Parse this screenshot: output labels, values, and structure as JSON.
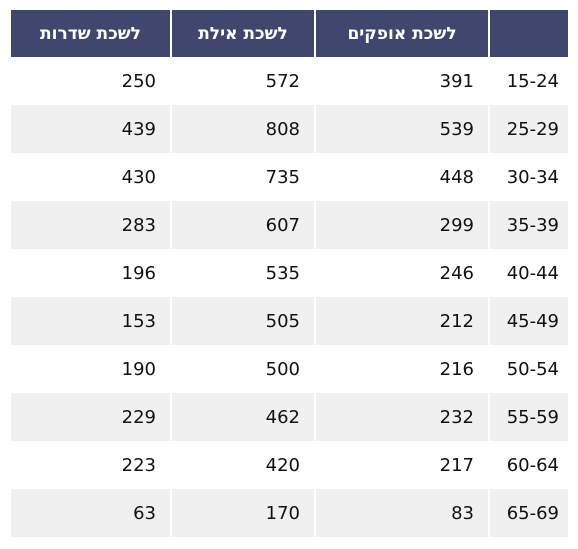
{
  "chart_data": {
    "type": "table",
    "columns": [
      "לשכת שדרות",
      "לשכת אילת",
      "לשכת אופקים",
      ""
    ],
    "rows": [
      {
        "label": "15-24",
        "values": [
          250,
          572,
          391
        ]
      },
      {
        "label": "25-29",
        "values": [
          439,
          808,
          539
        ]
      },
      {
        "label": "30-34",
        "values": [
          430,
          735,
          448
        ]
      },
      {
        "label": "35-39",
        "values": [
          283,
          607,
          299
        ]
      },
      {
        "label": "40-44",
        "values": [
          196,
          535,
          246
        ]
      },
      {
        "label": "45-49",
        "values": [
          153,
          505,
          212
        ]
      },
      {
        "label": "50-54",
        "values": [
          190,
          500,
          216
        ]
      },
      {
        "label": "55-59",
        "values": [
          229,
          462,
          232
        ]
      },
      {
        "label": "60-64",
        "values": [
          223,
          420,
          217
        ]
      },
      {
        "label": "65-69",
        "values": [
          63,
          170,
          83
        ]
      }
    ]
  },
  "colors": {
    "header_bg": "#40466e",
    "header_text": "#ffffff",
    "row_alt_bg": "#f0f0f0",
    "row_bg": "#ffffff"
  }
}
